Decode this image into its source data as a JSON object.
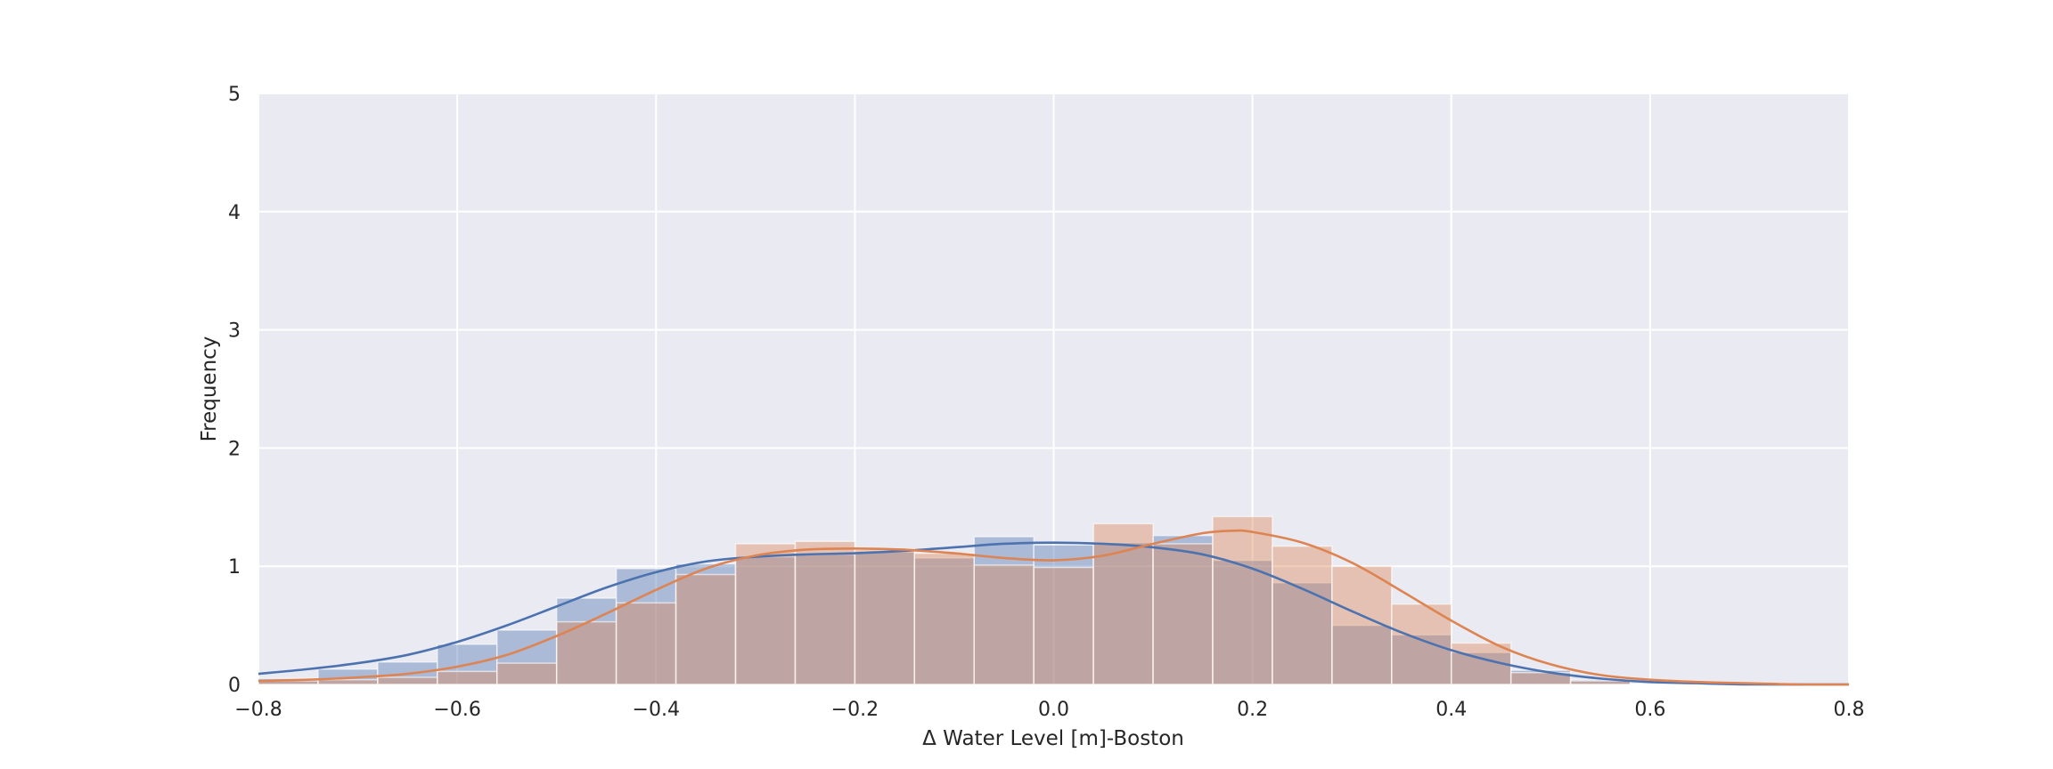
{
  "chart_data": {
    "type": "histogram",
    "xlabel": "Δ Water Level [m]-Boston",
    "ylabel": "Frequency",
    "xlim": [
      -0.8,
      0.8
    ],
    "ylim": [
      0,
      5
    ],
    "x_ticks": [
      "−0.8",
      "−0.6",
      "−0.4",
      "−0.2",
      "0.0",
      "0.2",
      "0.4",
      "0.6",
      "0.8"
    ],
    "y_ticks": [
      "0",
      "1",
      "2",
      "3",
      "4",
      "5"
    ],
    "grid": true,
    "colors": {
      "background": "#eaeaf2",
      "grid": "#ffffff",
      "series_1": "#4c72b0",
      "series_2": "#dd8452",
      "overlap": "#b39b9b"
    },
    "series": [
      {
        "color": "#4c72b0",
        "bins": [
          {
            "x0": -0.8,
            "x1": -0.74,
            "height": 0.05
          },
          {
            "x0": -0.74,
            "x1": -0.68,
            "height": 0.13
          },
          {
            "x0": -0.68,
            "x1": -0.62,
            "height": 0.19
          },
          {
            "x0": -0.62,
            "x1": -0.56,
            "height": 0.34
          },
          {
            "x0": -0.56,
            "x1": -0.5,
            "height": 0.46
          },
          {
            "x0": -0.5,
            "x1": -0.44,
            "height": 0.73
          },
          {
            "x0": -0.44,
            "x1": -0.38,
            "height": 0.98
          },
          {
            "x0": -0.38,
            "x1": -0.32,
            "height": 1.02
          },
          {
            "x0": -0.32,
            "x1": -0.26,
            "height": 1.08
          },
          {
            "x0": -0.26,
            "x1": -0.2,
            "height": 1.1
          },
          {
            "x0": -0.2,
            "x1": -0.14,
            "height": 1.12
          },
          {
            "x0": -0.14,
            "x1": -0.08,
            "height": 1.07
          },
          {
            "x0": -0.08,
            "x1": -0.02,
            "height": 1.25
          },
          {
            "x0": -0.02,
            "x1": 0.04,
            "height": 1.18
          },
          {
            "x0": 0.04,
            "x1": 0.1,
            "height": 1.2
          },
          {
            "x0": 0.1,
            "x1": 0.16,
            "height": 1.26
          },
          {
            "x0": 0.16,
            "x1": 0.22,
            "height": 1.05
          },
          {
            "x0": 0.22,
            "x1": 0.28,
            "height": 0.86
          },
          {
            "x0": 0.28,
            "x1": 0.34,
            "height": 0.5
          },
          {
            "x0": 0.34,
            "x1": 0.4,
            "height": 0.42
          },
          {
            "x0": 0.4,
            "x1": 0.46,
            "height": 0.27
          },
          {
            "x0": 0.46,
            "x1": 0.52,
            "height": 0.12
          },
          {
            "x0": 0.52,
            "x1": 0.58,
            "height": 0.04
          }
        ],
        "kde_points": [
          [
            -0.8,
            0.09
          ],
          [
            -0.75,
            0.13
          ],
          [
            -0.7,
            0.18
          ],
          [
            -0.65,
            0.25
          ],
          [
            -0.6,
            0.36
          ],
          [
            -0.55,
            0.5
          ],
          [
            -0.5,
            0.66
          ],
          [
            -0.45,
            0.82
          ],
          [
            -0.4,
            0.95
          ],
          [
            -0.35,
            1.04
          ],
          [
            -0.3,
            1.08
          ],
          [
            -0.25,
            1.1
          ],
          [
            -0.2,
            1.11
          ],
          [
            -0.15,
            1.13
          ],
          [
            -0.1,
            1.16
          ],
          [
            -0.05,
            1.19
          ],
          [
            0.0,
            1.2
          ],
          [
            0.05,
            1.19
          ],
          [
            0.1,
            1.16
          ],
          [
            0.15,
            1.1
          ],
          [
            0.2,
            0.98
          ],
          [
            0.25,
            0.81
          ],
          [
            0.3,
            0.62
          ],
          [
            0.35,
            0.44
          ],
          [
            0.4,
            0.29
          ],
          [
            0.45,
            0.18
          ],
          [
            0.5,
            0.1
          ],
          [
            0.55,
            0.05
          ],
          [
            0.6,
            0.02
          ],
          [
            0.65,
            0.01
          ],
          [
            0.7,
            0.0
          ],
          [
            0.8,
            0.0
          ]
        ]
      },
      {
        "color": "#dd8452",
        "bins": [
          {
            "x0": -0.8,
            "x1": -0.74,
            "height": 0.03
          },
          {
            "x0": -0.74,
            "x1": -0.68,
            "height": 0.04
          },
          {
            "x0": -0.68,
            "x1": -0.62,
            "height": 0.06
          },
          {
            "x0": -0.62,
            "x1": -0.56,
            "height": 0.11
          },
          {
            "x0": -0.56,
            "x1": -0.5,
            "height": 0.18
          },
          {
            "x0": -0.5,
            "x1": -0.44,
            "height": 0.53
          },
          {
            "x0": -0.44,
            "x1": -0.38,
            "height": 0.69
          },
          {
            "x0": -0.38,
            "x1": -0.32,
            "height": 0.93
          },
          {
            "x0": -0.32,
            "x1": -0.26,
            "height": 1.19
          },
          {
            "x0": -0.26,
            "x1": -0.2,
            "height": 1.21
          },
          {
            "x0": -0.2,
            "x1": -0.14,
            "height": 1.14
          },
          {
            "x0": -0.14,
            "x1": -0.08,
            "height": 1.11
          },
          {
            "x0": -0.08,
            "x1": -0.02,
            "height": 1.01
          },
          {
            "x0": -0.02,
            "x1": 0.04,
            "height": 0.99
          },
          {
            "x0": 0.04,
            "x1": 0.1,
            "height": 1.36
          },
          {
            "x0": 0.1,
            "x1": 0.16,
            "height": 1.19
          },
          {
            "x0": 0.16,
            "x1": 0.22,
            "height": 1.42
          },
          {
            "x0": 0.22,
            "x1": 0.28,
            "height": 1.17
          },
          {
            "x0": 0.28,
            "x1": 0.34,
            "height": 1.0
          },
          {
            "x0": 0.34,
            "x1": 0.4,
            "height": 0.68
          },
          {
            "x0": 0.4,
            "x1": 0.46,
            "height": 0.35
          },
          {
            "x0": 0.46,
            "x1": 0.52,
            "height": 0.1
          },
          {
            "x0": 0.52,
            "x1": 0.58,
            "height": 0.03
          }
        ],
        "kde_points": [
          [
            -0.8,
            0.03
          ],
          [
            -0.75,
            0.04
          ],
          [
            -0.7,
            0.06
          ],
          [
            -0.65,
            0.09
          ],
          [
            -0.6,
            0.15
          ],
          [
            -0.55,
            0.25
          ],
          [
            -0.5,
            0.41
          ],
          [
            -0.45,
            0.6
          ],
          [
            -0.4,
            0.8
          ],
          [
            -0.35,
            0.98
          ],
          [
            -0.3,
            1.09
          ],
          [
            -0.25,
            1.14
          ],
          [
            -0.2,
            1.15
          ],
          [
            -0.15,
            1.14
          ],
          [
            -0.1,
            1.11
          ],
          [
            -0.05,
            1.07
          ],
          [
            0.0,
            1.05
          ],
          [
            0.05,
            1.09
          ],
          [
            0.1,
            1.19
          ],
          [
            0.15,
            1.28
          ],
          [
            0.18,
            1.3
          ],
          [
            0.2,
            1.29
          ],
          [
            0.25,
            1.2
          ],
          [
            0.3,
            1.03
          ],
          [
            0.35,
            0.79
          ],
          [
            0.4,
            0.54
          ],
          [
            0.45,
            0.32
          ],
          [
            0.5,
            0.17
          ],
          [
            0.55,
            0.08
          ],
          [
            0.6,
            0.04
          ],
          [
            0.65,
            0.02
          ],
          [
            0.7,
            0.01
          ],
          [
            0.75,
            0.0
          ],
          [
            0.8,
            0.0
          ]
        ]
      }
    ]
  }
}
